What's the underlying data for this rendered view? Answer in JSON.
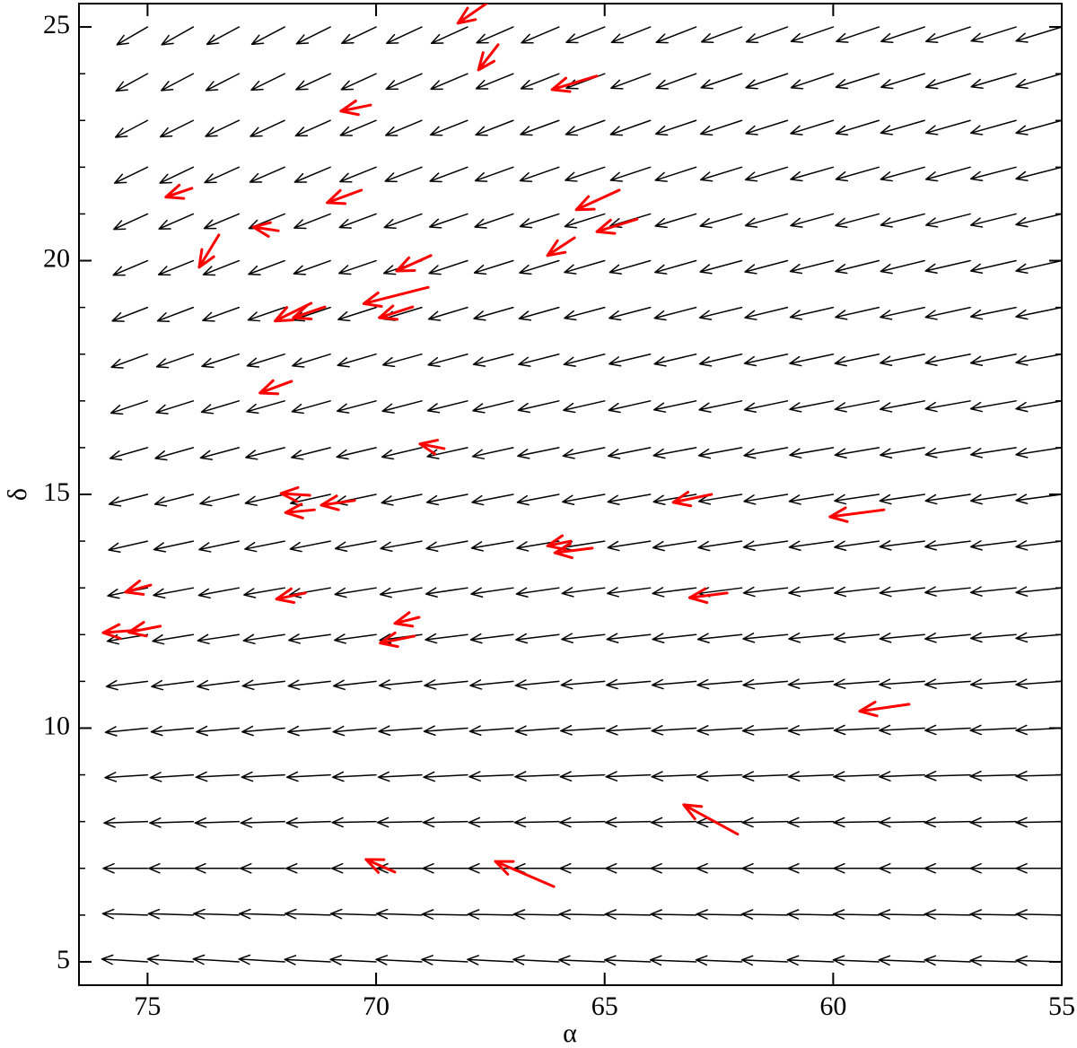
{
  "chart_data": {
    "type": "quiver",
    "xlabel": "α",
    "ylabel": "δ",
    "xlim": [
      76.5,
      55
    ],
    "ylim": [
      4.5,
      25.5
    ],
    "xticks": [
      75,
      70,
      65,
      60,
      55
    ],
    "yticks": [
      5,
      10,
      15,
      20,
      25
    ],
    "yminor_ticks": [
      6,
      7,
      8,
      9,
      11,
      12,
      13,
      14,
      16,
      17,
      18,
      19,
      21,
      22,
      23,
      24
    ],
    "field": {
      "color": "#000000",
      "x": [
        55,
        56,
        57,
        58,
        59,
        60,
        61,
        62,
        63,
        64,
        65,
        66,
        67,
        68,
        69,
        70,
        71,
        72,
        73,
        74,
        75
      ],
      "y": [
        5,
        6,
        7,
        8,
        9,
        10,
        11,
        12,
        13,
        14,
        15,
        16,
        17,
        18,
        19,
        20,
        21,
        22,
        23,
        24,
        25
      ],
      "u": [
        [
          1,
          1,
          1,
          1,
          1,
          1,
          1,
          1,
          1,
          1,
          1,
          1,
          1,
          1,
          1,
          1,
          1,
          1,
          1,
          1,
          1
        ],
        [
          1,
          1,
          1,
          1,
          1,
          1,
          1,
          0.99,
          0.99,
          0.99,
          0.99,
          0.99,
          0.99,
          0.99,
          0.99,
          0.99,
          0.99,
          0.99,
          0.99,
          0.98,
          0.98
        ],
        [
          1,
          1,
          1,
          0.99,
          0.99,
          0.99,
          0.99,
          0.99,
          0.99,
          0.98,
          0.98,
          0.98,
          0.98,
          0.98,
          0.98,
          0.97,
          0.97,
          0.97,
          0.97,
          0.97,
          0.97
        ],
        [
          1,
          1,
          1,
          0.99,
          0.99,
          0.99,
          0.99,
          0.98,
          0.98,
          0.98,
          0.98,
          0.97,
          0.97,
          0.97,
          0.97,
          0.96,
          0.96,
          0.96,
          0.96,
          0.95,
          0.95
        ],
        [
          1,
          1,
          0.99,
          0.99,
          0.99,
          0.98,
          0.98,
          0.98,
          0.97,
          0.97,
          0.97,
          0.96,
          0.96,
          0.96,
          0.95,
          0.95,
          0.95,
          0.94,
          0.94,
          0.94,
          0.93
        ],
        [
          1,
          1,
          0.99,
          0.99,
          0.98,
          0.98,
          0.98,
          0.97,
          0.97,
          0.96,
          0.96,
          0.95,
          0.95,
          0.95,
          0.94,
          0.94,
          0.93,
          0.93,
          0.93,
          0.92,
          0.92
        ],
        [
          1,
          0.99,
          0.99,
          0.99,
          0.98,
          0.98,
          0.97,
          0.97,
          0.96,
          0.96,
          0.95,
          0.95,
          0.94,
          0.94,
          0.93,
          0.93,
          0.92,
          0.92,
          0.91,
          0.91,
          0.9
        ],
        [
          1,
          0.99,
          0.99,
          0.98,
          0.98,
          0.97,
          0.97,
          0.96,
          0.95,
          0.95,
          0.94,
          0.94,
          0.93,
          0.92,
          0.92,
          0.91,
          0.91,
          0.9,
          0.9,
          0.89,
          0.88
        ],
        [
          1,
          0.99,
          0.99,
          0.98,
          0.97,
          0.97,
          0.96,
          0.95,
          0.95,
          0.94,
          0.93,
          0.93,
          0.92,
          0.91,
          0.91,
          0.9,
          0.89,
          0.89,
          0.88,
          0.87,
          0.87
        ],
        [
          1,
          0.99,
          0.99,
          0.98,
          0.97,
          0.96,
          0.96,
          0.95,
          0.94,
          0.93,
          0.93,
          0.92,
          0.91,
          0.9,
          0.9,
          0.89,
          0.88,
          0.87,
          0.87,
          0.86,
          0.85
        ],
        [
          1,
          0.99,
          0.98,
          0.98,
          0.97,
          0.96,
          0.95,
          0.94,
          0.93,
          0.93,
          0.92,
          0.91,
          0.9,
          0.89,
          0.88,
          0.88,
          0.87,
          0.86,
          0.85,
          0.84,
          0.84
        ],
        [
          1,
          0.99,
          0.98,
          0.97,
          0.96,
          0.95,
          0.95,
          0.94,
          0.93,
          0.92,
          0.91,
          0.9,
          0.89,
          0.88,
          0.87,
          0.86,
          0.85,
          0.85,
          0.84,
          0.83,
          0.82
        ],
        [
          1,
          0.99,
          0.98,
          0.97,
          0.96,
          0.95,
          0.94,
          0.93,
          0.92,
          0.91,
          0.9,
          0.89,
          0.88,
          0.87,
          0.86,
          0.85,
          0.84,
          0.83,
          0.82,
          0.81,
          0.8
        ],
        [
          1,
          0.99,
          0.98,
          0.97,
          0.96,
          0.95,
          0.94,
          0.92,
          0.91,
          0.9,
          0.89,
          0.88,
          0.87,
          0.86,
          0.85,
          0.84,
          0.83,
          0.82,
          0.81,
          0.8,
          0.79
        ],
        [
          1,
          0.99,
          0.98,
          0.97,
          0.95,
          0.94,
          0.93,
          0.92,
          0.91,
          0.9,
          0.88,
          0.87,
          0.86,
          0.85,
          0.84,
          0.83,
          0.82,
          0.8,
          0.79,
          0.78,
          0.77
        ],
        [
          1,
          0.99,
          0.98,
          0.96,
          0.95,
          0.94,
          0.93,
          0.91,
          0.9,
          0.89,
          0.88,
          0.86,
          0.85,
          0.84,
          0.83,
          0.81,
          0.8,
          0.79,
          0.78,
          0.76,
          0.75
        ],
        [
          1,
          0.99,
          0.97,
          0.96,
          0.95,
          0.93,
          0.92,
          0.91,
          0.89,
          0.88,
          0.87,
          0.85,
          0.84,
          0.83,
          0.82,
          0.8,
          0.79,
          0.78,
          0.76,
          0.75,
          0.74
        ],
        [
          1,
          0.99,
          0.97,
          0.96,
          0.94,
          0.93,
          0.92,
          0.9,
          0.89,
          0.87,
          0.86,
          0.85,
          0.83,
          0.82,
          0.8,
          0.79,
          0.78,
          0.76,
          0.75,
          0.73,
          0.72
        ],
        [
          1,
          0.99,
          0.97,
          0.96,
          0.94,
          0.93,
          0.91,
          0.9,
          0.88,
          0.87,
          0.85,
          0.84,
          0.82,
          0.81,
          0.79,
          0.78,
          0.76,
          0.75,
          0.73,
          0.72,
          0.7
        ],
        [
          1,
          0.98,
          0.97,
          0.95,
          0.94,
          0.92,
          0.91,
          0.89,
          0.87,
          0.86,
          0.84,
          0.83,
          0.81,
          0.8,
          0.78,
          0.76,
          0.75,
          0.73,
          0.72,
          0.7,
          0.69
        ],
        [
          1,
          0.98,
          0.97,
          0.95,
          0.93,
          0.92,
          0.9,
          0.88,
          0.87,
          0.85,
          0.84,
          0.82,
          0.8,
          0.79,
          0.77,
          0.75,
          0.74,
          0.72,
          0.7,
          0.69,
          0.67
        ]
      ],
      "v": [
        [
          0.03,
          0.03,
          0.04,
          0.04,
          0.04,
          0.04,
          0.04,
          0.04,
          0.04,
          0.04,
          0.04,
          0.05,
          0.05,
          0.05,
          0.05,
          0.05,
          0.05,
          0.06,
          0.06,
          0.06,
          0.06
        ],
        [
          0.02,
          0.02,
          0.02,
          0.02,
          0.02,
          0.02,
          0.02,
          0.02,
          0.02,
          0.02,
          0.02,
          0.02,
          0.02,
          0.02,
          0.03,
          0.03,
          0.03,
          0.03,
          0.03,
          0.03,
          0.03
        ],
        [
          0,
          0,
          0,
          0,
          0,
          0,
          0,
          0,
          0,
          0,
          0,
          0,
          0,
          0,
          0,
          0,
          0,
          0,
          0,
          0,
          0
        ],
        [
          -0.02,
          -0.02,
          -0.02,
          -0.02,
          -0.02,
          -0.02,
          -0.02,
          -0.02,
          -0.02,
          -0.02,
          -0.02,
          -0.02,
          -0.02,
          -0.02,
          -0.02,
          -0.02,
          -0.03,
          -0.03,
          -0.03,
          -0.03,
          -0.03
        ],
        [
          -0.03,
          -0.03,
          -0.03,
          -0.04,
          -0.04,
          -0.04,
          -0.04,
          -0.04,
          -0.04,
          -0.04,
          -0.04,
          -0.04,
          -0.04,
          -0.05,
          -0.05,
          -0.05,
          -0.05,
          -0.05,
          -0.05,
          -0.06,
          -0.06
        ],
        [
          -0.05,
          -0.05,
          -0.05,
          -0.05,
          -0.05,
          -0.06,
          -0.06,
          -0.06,
          -0.06,
          -0.06,
          -0.06,
          -0.07,
          -0.07,
          -0.07,
          -0.07,
          -0.08,
          -0.08,
          -0.08,
          -0.08,
          -0.08,
          -0.09
        ],
        [
          -0.07,
          -0.07,
          -0.07,
          -0.07,
          -0.07,
          -0.07,
          -0.08,
          -0.08,
          -0.08,
          -0.08,
          -0.08,
          -0.09,
          -0.09,
          -0.09,
          -0.09,
          -0.1,
          -0.1,
          -0.1,
          -0.11,
          -0.11,
          -0.11
        ],
        [
          -0.08,
          -0.08,
          -0.09,
          -0.09,
          -0.09,
          -0.09,
          -0.09,
          -0.1,
          -0.1,
          -0.1,
          -0.1,
          -0.11,
          -0.11,
          -0.11,
          -0.12,
          -0.12,
          -0.12,
          -0.13,
          -0.13,
          -0.14,
          -0.14
        ],
        [
          -0.1,
          -0.1,
          -0.1,
          -0.11,
          -0.11,
          -0.11,
          -0.11,
          -0.12,
          -0.12,
          -0.12,
          -0.12,
          -0.13,
          -0.13,
          -0.13,
          -0.14,
          -0.14,
          -0.15,
          -0.15,
          -0.16,
          -0.16,
          -0.17
        ],
        [
          -0.12,
          -0.12,
          -0.12,
          -0.12,
          -0.13,
          -0.13,
          -0.13,
          -0.14,
          -0.14,
          -0.14,
          -0.14,
          -0.15,
          -0.15,
          -0.16,
          -0.16,
          -0.16,
          -0.17,
          -0.17,
          -0.18,
          -0.18,
          -0.19
        ],
        [
          -0.13,
          -0.14,
          -0.14,
          -0.14,
          -0.14,
          -0.15,
          -0.15,
          -0.15,
          -0.16,
          -0.16,
          -0.16,
          -0.17,
          -0.17,
          -0.17,
          -0.18,
          -0.18,
          -0.19,
          -0.19,
          -0.2,
          -0.21,
          -0.21
        ],
        [
          -0.15,
          -0.15,
          -0.15,
          -0.16,
          -0.16,
          -0.16,
          -0.17,
          -0.17,
          -0.17,
          -0.18,
          -0.18,
          -0.18,
          -0.19,
          -0.19,
          -0.2,
          -0.2,
          -0.21,
          -0.21,
          -0.22,
          -0.23,
          -0.23
        ],
        [
          -0.17,
          -0.17,
          -0.17,
          -0.18,
          -0.18,
          -0.18,
          -0.19,
          -0.19,
          -0.19,
          -0.2,
          -0.2,
          -0.2,
          -0.21,
          -0.21,
          -0.22,
          -0.22,
          -0.23,
          -0.23,
          -0.24,
          -0.25,
          -0.26
        ],
        [
          -0.18,
          -0.19,
          -0.19,
          -0.19,
          -0.2,
          -0.2,
          -0.2,
          -0.21,
          -0.21,
          -0.21,
          -0.22,
          -0.22,
          -0.22,
          -0.23,
          -0.23,
          -0.24,
          -0.25,
          -0.25,
          -0.26,
          -0.27,
          -0.28
        ],
        [
          -0.2,
          -0.2,
          -0.21,
          -0.21,
          -0.21,
          -0.21,
          -0.22,
          -0.22,
          -0.23,
          -0.23,
          -0.23,
          -0.24,
          -0.24,
          -0.25,
          -0.25,
          -0.26,
          -0.27,
          -0.27,
          -0.28,
          -0.29,
          -0.29
        ],
        [
          -0.22,
          -0.22,
          -0.22,
          -0.23,
          -0.23,
          -0.23,
          -0.24,
          -0.24,
          -0.25,
          -0.25,
          -0.25,
          -0.26,
          -0.26,
          -0.27,
          -0.27,
          -0.27,
          -0.28,
          -0.29,
          -0.3,
          -0.3,
          -0.31
        ],
        [
          -0.23,
          -0.24,
          -0.24,
          -0.24,
          -0.25,
          -0.25,
          -0.25,
          -0.26,
          -0.26,
          -0.26,
          -0.27,
          -0.27,
          -0.28,
          -0.28,
          -0.29,
          -0.29,
          -0.3,
          -0.31,
          -0.31,
          -0.32,
          -0.33
        ],
        [
          -0.25,
          -0.25,
          -0.26,
          -0.26,
          -0.26,
          -0.26,
          -0.27,
          -0.27,
          -0.28,
          -0.28,
          -0.28,
          -0.29,
          -0.29,
          -0.3,
          -0.3,
          -0.31,
          -0.32,
          -0.32,
          -0.33,
          -0.34,
          -0.34
        ],
        [
          -0.27,
          -0.27,
          -0.27,
          -0.27,
          -0.28,
          -0.28,
          -0.28,
          -0.29,
          -0.29,
          -0.3,
          -0.3,
          -0.3,
          -0.31,
          -0.31,
          -0.32,
          -0.32,
          -0.33,
          -0.34,
          -0.34,
          -0.35,
          -0.36
        ],
        [
          -0.28,
          -0.28,
          -0.29,
          -0.29,
          -0.29,
          -0.3,
          -0.3,
          -0.3,
          -0.31,
          -0.31,
          -0.31,
          -0.32,
          -0.32,
          -0.33,
          -0.33,
          -0.34,
          -0.34,
          -0.35,
          -0.36,
          -0.36,
          -0.37
        ],
        [
          -0.3,
          -0.3,
          -0.31,
          -0.31,
          -0.31,
          -0.31,
          -0.32,
          -0.32,
          -0.33,
          -0.33,
          -0.33,
          -0.34,
          -0.34,
          -0.35,
          -0.35,
          -0.35,
          -0.36,
          -0.37,
          -0.37,
          -0.38,
          -0.38
        ]
      ]
    },
    "vectors": {
      "color": "#ff0000",
      "x": [
        67.53,
        67.33,
        65.17,
        70.12,
        74.03,
        70.32,
        64.68,
        64.29,
        72.14,
        73.44,
        65.66,
        68.8,
        68.86,
        69.2,
        71.12,
        71.42,
        71.85,
        68.51,
        71.45,
        71.35,
        70.47,
        62.66,
        58.89,
        65.74,
        65.27,
        74.93,
        71.55,
        62.32,
        74.72,
        75.18,
        69.06,
        69.16,
        58.34,
        62.09,
        66.11,
        69.59
      ],
      "y": [
        25.54,
        24.62,
        23.95,
        23.33,
        21.55,
        21.51,
        21.51,
        20.89,
        20.64,
        20.55,
        20.49,
        20.11,
        19.43,
        19.01,
        19.01,
        19.09,
        17.42,
        15.98,
        14.98,
        14.67,
        14.87,
        15.0,
        14.67,
        14.0,
        13.85,
        13.06,
        12.89,
        12.89,
        12.18,
        12.1,
        12.37,
        11.97,
        10.51,
        7.73,
        6.61,
        6.92
      ],
      "u": [
        0.68,
        0.43,
        0.98,
        0.65,
        0.57,
        0.75,
        0.94,
        0.88,
        0.55,
        0.43,
        0.59,
        0.75,
        1.41,
        0.73,
        0.69,
        0.79,
        0.69,
        0.53,
        0.63,
        0.63,
        0.73,
        0.84,
        1.18,
        0.51,
        0.82,
        0.55,
        0.63,
        0.82,
        0.69,
        0.79,
        0.53,
        0.75,
        1.08,
        1.18,
        1.28,
        0.63
      ],
      "v": [
        -0.46,
        -0.54,
        -0.29,
        -0.13,
        -0.19,
        -0.27,
        -0.42,
        -0.27,
        0.08,
        -0.69,
        -0.38,
        -0.33,
        -0.35,
        -0.23,
        -0.23,
        -0.38,
        -0.25,
        0.1,
        0.04,
        -0.06,
        -0.1,
        -0.17,
        -0.15,
        -0.1,
        -0.1,
        -0.15,
        -0.13,
        -0.1,
        -0.13,
        -0.06,
        -0.13,
        -0.15,
        -0.15,
        0.63,
        0.54,
        0.27
      ]
    }
  }
}
